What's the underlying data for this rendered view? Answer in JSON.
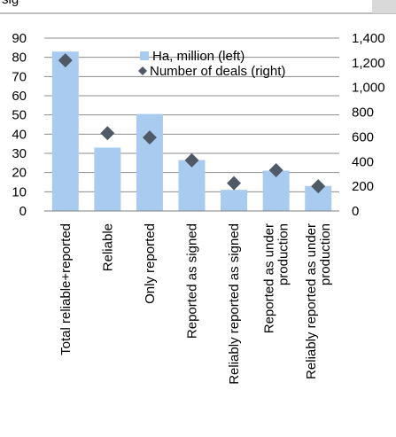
{
  "header": {
    "title_fragment": "sig"
  },
  "chart_data": {
    "type": "bar",
    "categories": [
      "Total reliable+reported",
      "Reliable",
      "Only reported",
      "Reported as signed",
      "Reliably reported as signed",
      "Reported as under production",
      "Reliably reported as under production"
    ],
    "series": [
      {
        "name": "Ha, million (left)",
        "type": "bar",
        "axis": "left",
        "color": "#a9cbf0",
        "values": [
          83,
          33,
          50.5,
          26.5,
          11,
          21,
          13
        ]
      },
      {
        "name": "Number of deals (right)",
        "type": "scatter",
        "axis": "right",
        "color": "#4f5a66",
        "values": [
          1220,
          630,
          595,
          410,
          225,
          330,
          200
        ]
      }
    ],
    "y_left": {
      "min": 0,
      "max": 90,
      "ticks": [
        "0",
        "10",
        "20",
        "30",
        "40",
        "50",
        "60",
        "70",
        "80",
        "90"
      ]
    },
    "y_right": {
      "min": 0,
      "max": 1400,
      "ticks": [
        "0",
        "200",
        "400",
        "600",
        "800",
        "1,000",
        "1,200",
        "1,400"
      ]
    },
    "grid": true,
    "legend": "top-right"
  }
}
